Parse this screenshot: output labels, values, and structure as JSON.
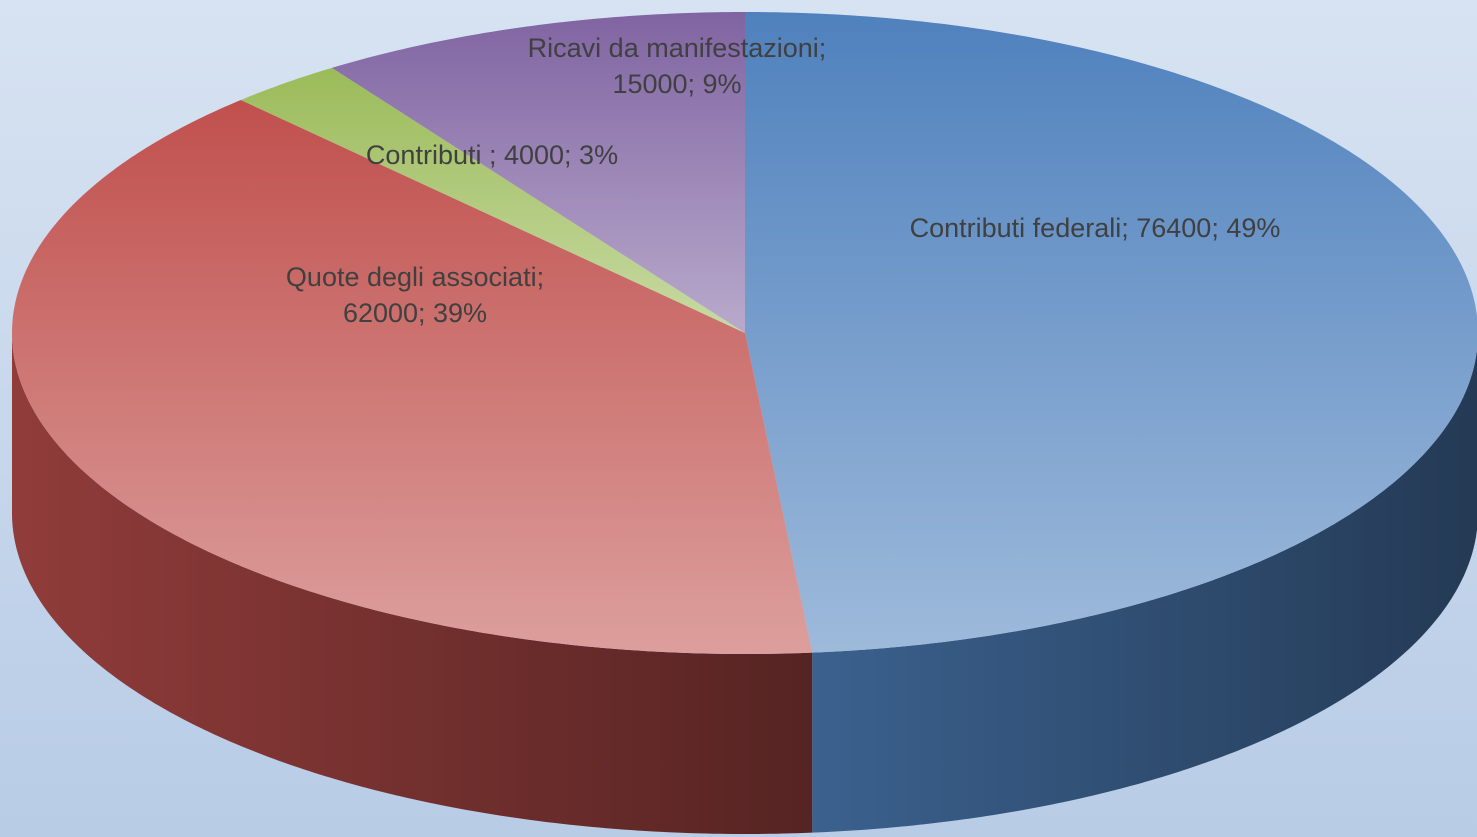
{
  "chart_data": {
    "type": "pie",
    "categories": [
      "Contributi federali",
      "Quote degli associati",
      "Contributi ",
      "Ricavi da manifestazioni"
    ],
    "values": [
      76400,
      62000,
      4000,
      15000
    ],
    "value_labels": [
      "Contributi federali; 76400; 49%",
      "Quote degli associati; 62000; 39%",
      "Contributi ; 4000; 3%",
      "Ricavi da manifestazioni; 15000; 9%"
    ],
    "colors": [
      "#4f81bd",
      "#c0504d",
      "#9bbb59",
      "#8064a2"
    ]
  }
}
